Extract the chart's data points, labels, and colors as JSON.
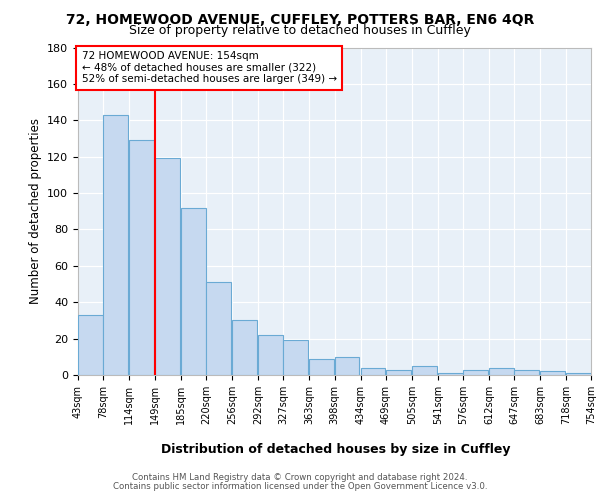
{
  "title1": "72, HOMEWOOD AVENUE, CUFFLEY, POTTERS BAR, EN6 4QR",
  "title2": "Size of property relative to detached houses in Cuffley",
  "xlabel": "Distribution of detached houses by size in Cuffley",
  "ylabel": "Number of detached properties",
  "bar_color": "#c6d9f0",
  "bar_edge_color": "#6aaad4",
  "background_color": "#e8f0f8",
  "grid_color": "#ffffff",
  "red_line_x": 149,
  "annotation_line1": "72 HOMEWOOD AVENUE: 154sqm",
  "annotation_line2": "← 48% of detached houses are smaller (322)",
  "annotation_line3": "52% of semi-detached houses are larger (349) →",
  "bins_left": [
    43,
    78,
    114,
    149,
    185,
    220,
    256,
    292,
    327,
    363,
    398,
    434,
    469,
    505,
    541,
    576,
    612,
    647,
    683,
    718
  ],
  "bin_width": 35,
  "values": [
    33,
    143,
    129,
    119,
    92,
    51,
    30,
    22,
    19,
    9,
    10,
    4,
    3,
    5,
    1,
    3,
    4,
    3,
    2,
    1
  ],
  "ylim": [
    0,
    180
  ],
  "yticks": [
    0,
    20,
    40,
    60,
    80,
    100,
    120,
    140,
    160,
    180
  ],
  "xtick_labels": [
    "43sqm",
    "78sqm",
    "114sqm",
    "149sqm",
    "185sqm",
    "220sqm",
    "256sqm",
    "292sqm",
    "327sqm",
    "363sqm",
    "398sqm",
    "434sqm",
    "469sqm",
    "505sqm",
    "541sqm",
    "576sqm",
    "612sqm",
    "647sqm",
    "683sqm",
    "718sqm",
    "754sqm"
  ],
  "footer1": "Contains HM Land Registry data © Crown copyright and database right 2024.",
  "footer2": "Contains public sector information licensed under the Open Government Licence v3.0."
}
